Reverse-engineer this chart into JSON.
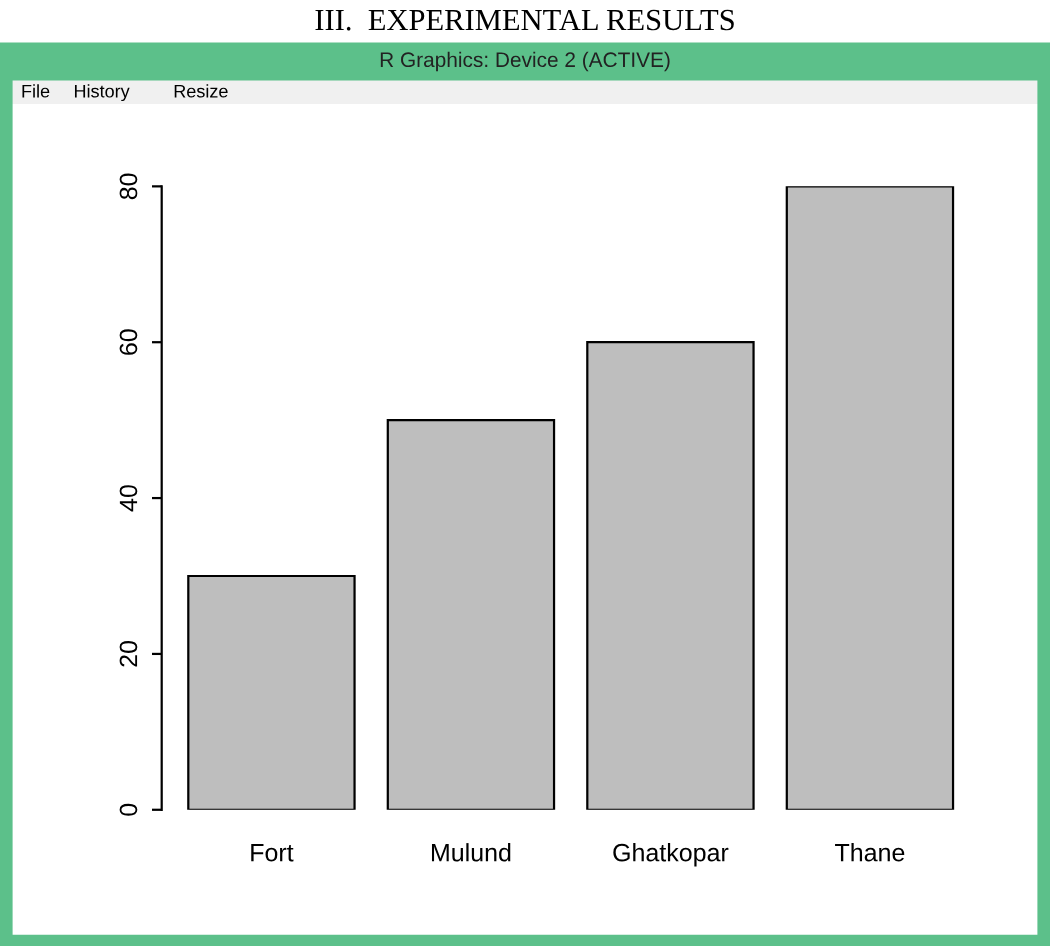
{
  "chart_data": {
    "type": "bar",
    "categories": [
      "Fort",
      "Mulund",
      "Ghatkopar",
      "Thane"
    ],
    "values": [
      30,
      50,
      60,
      80
    ],
    "color": "#bebebe",
    "ylim": [
      0,
      80
    ],
    "yticks": [
      0,
      20,
      40,
      60,
      80
    ],
    "grid": false,
    "legend": false,
    "annotations": [
      "III.  EXPERIMENTAL RESULTS",
      "R Graphics: Device 2 (ACTIVE)",
      "File",
      "History",
      "Resize"
    ]
  }
}
